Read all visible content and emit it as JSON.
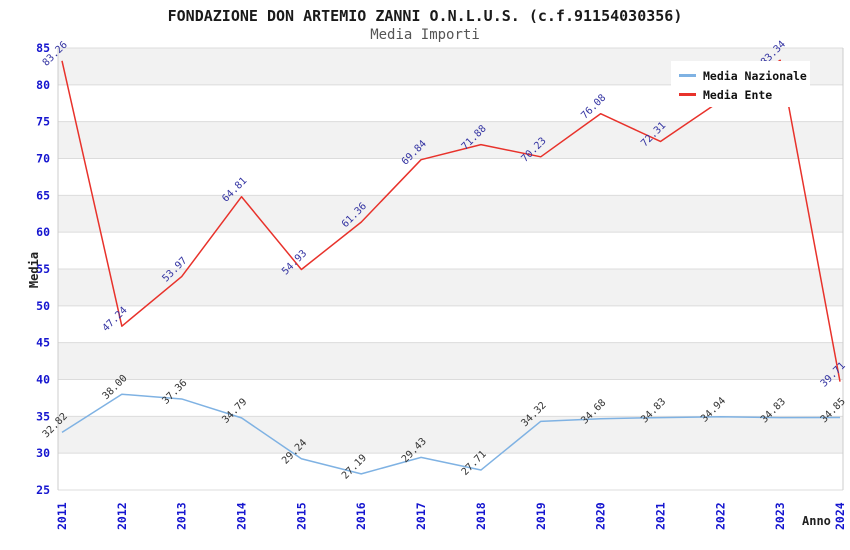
{
  "chart": {
    "title": "FONDAZIONE DON ARTEMIO ZANNI O.N.L.U.S. (c.f.91154030356)",
    "subtitle": "Media Importi",
    "xlabel": "Anno",
    "ylabel": "Media"
  },
  "legend": {
    "items": [
      {
        "label": "Media Nazionale",
        "color": "#7fb2e3"
      },
      {
        "label": "Media Ente",
        "color": "#e8322b"
      }
    ]
  },
  "chart_data": {
    "type": "line",
    "x": [
      2011,
      2012,
      2013,
      2014,
      2015,
      2016,
      2017,
      2018,
      2019,
      2020,
      2021,
      2022,
      2023,
      2024
    ],
    "series": [
      {
        "name": "Media Nazionale",
        "color": "#7fb2e3",
        "label_color": "#333333",
        "values": [
          32.82,
          38.0,
          37.36,
          34.79,
          29.24,
          27.19,
          29.43,
          27.71,
          34.32,
          34.68,
          34.83,
          34.94,
          34.83,
          34.85
        ],
        "hidden_label_indices": []
      },
      {
        "name": "Media Ente",
        "color": "#e8322b",
        "label_color": "#3434a2",
        "values": [
          83.26,
          47.24,
          53.97,
          64.81,
          54.93,
          61.36,
          69.84,
          71.88,
          70.23,
          76.08,
          72.31,
          77.83,
          83.34,
          39.71
        ],
        "hidden_label_indices": [
          11
        ]
      }
    ],
    "ylim": [
      25,
      85
    ],
    "yticks": [
      25,
      30,
      35,
      40,
      45,
      50,
      55,
      60,
      65,
      70,
      75,
      80,
      85
    ],
    "grid": true,
    "legend_position": "top-right",
    "colors": {
      "tick_label": "#1515cf",
      "band": "#f2f2f2",
      "gridline": "#dcdcdc",
      "plot_border": "#cccccc"
    }
  }
}
